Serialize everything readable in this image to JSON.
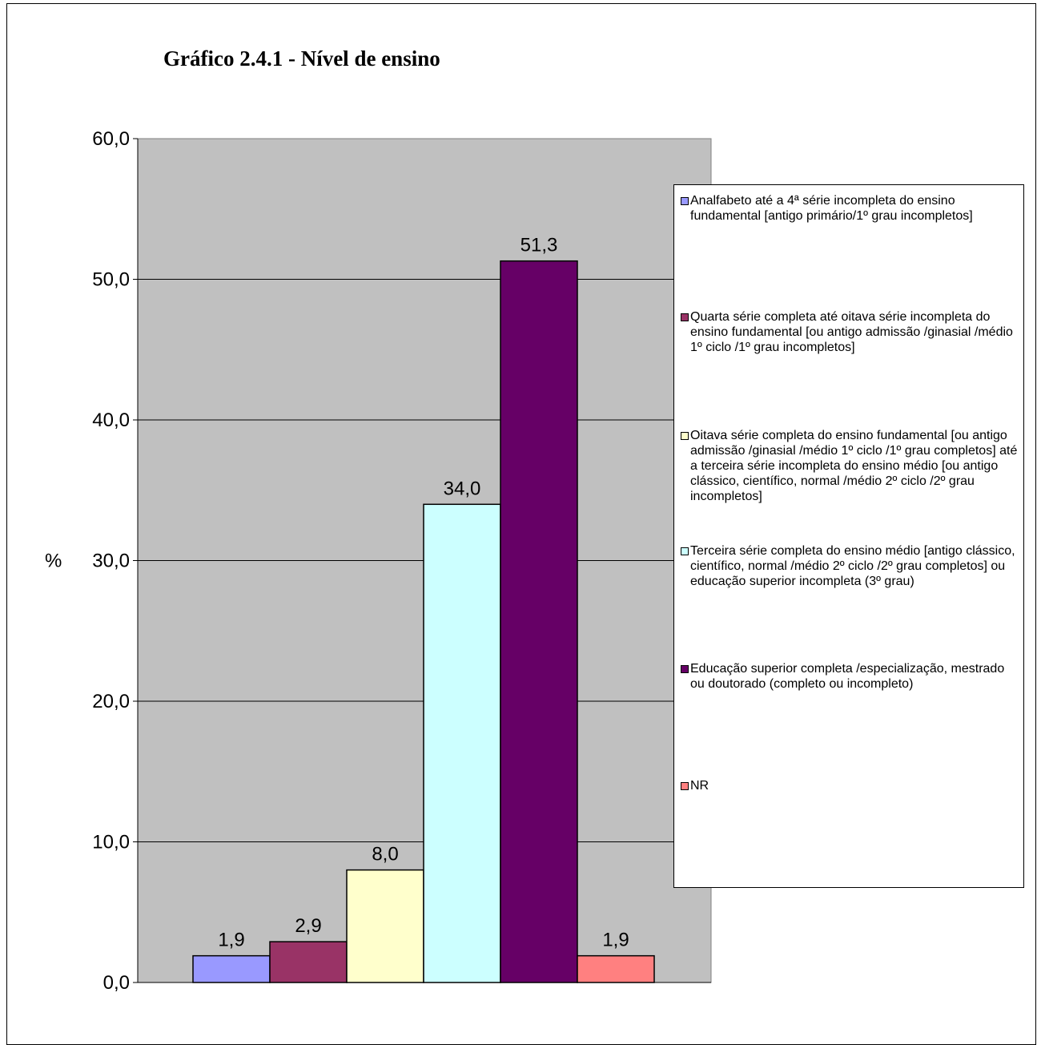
{
  "chart_data": {
    "type": "bar",
    "title": "Gráfico 2.4.1 - Nível de ensino",
    "ylabel": "%",
    "ylim": [
      0,
      60
    ],
    "yticks": [
      "0,0",
      "10,0",
      "20,0",
      "30,0",
      "40,0",
      "50,0",
      "60,0"
    ],
    "grid": true,
    "legend_position": "right",
    "series": [
      {
        "name": "Analfabeto até a 4ª série incompleta do ensino fundamental [antigo primário/1º grau incompletos]",
        "value": 1.9,
        "label": "1,9",
        "color": "#9999FF"
      },
      {
        "name": "Quarta série completa até oitava série incompleta do ensino fundamental [ou antigo admissão /ginasial /médio 1º ciclo /1º grau incompletos]",
        "value": 2.9,
        "label": "2,9",
        "color": "#993366"
      },
      {
        "name": "Oitava série completa do ensino fundamental [ou antigo admissão /ginasial /médio 1º ciclo /1º grau completos] até a terceira série incompleta do ensino médio [ou antigo clássico, científico, normal /médio 2º ciclo /2º grau incompletos]",
        "value": 8.0,
        "label": "8,0",
        "color": "#FFFFCC"
      },
      {
        "name": "Terceira série completa do ensino médio [antigo clássico, científico, normal /médio 2º ciclo /2º grau completos] ou educação superior incompleta (3º grau)",
        "value": 34.0,
        "label": "34,0",
        "color": "#CCFFFF"
      },
      {
        "name": "Educação superior completa /especialização, mestrado ou doutorado (completo ou incompleto)",
        "value": 51.3,
        "label": "51,3",
        "color": "#660066"
      },
      {
        "name": "NR",
        "value": 1.9,
        "label": "1,9",
        "color": "#FF8080"
      }
    ],
    "plot_background": "#C0C0C0"
  }
}
